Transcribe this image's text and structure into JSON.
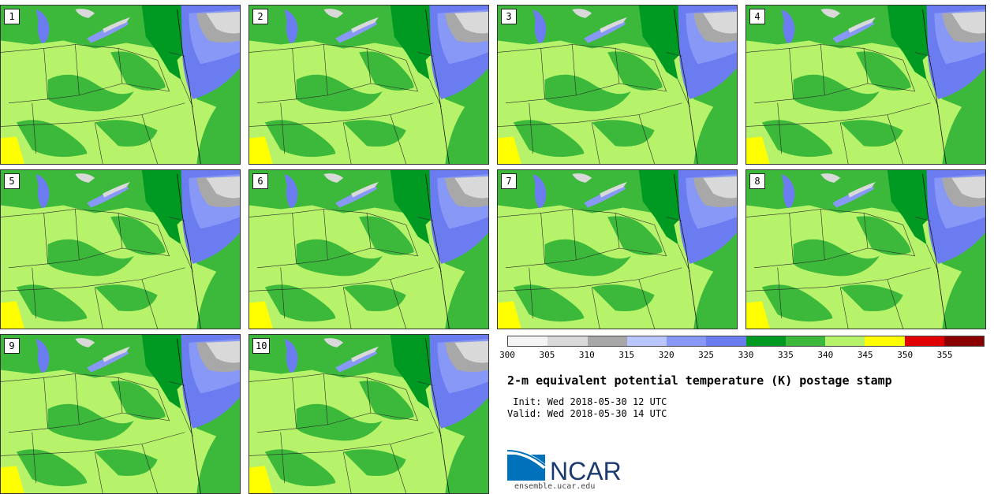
{
  "panels": [
    {
      "label": "1"
    },
    {
      "label": "2"
    },
    {
      "label": "3"
    },
    {
      "label": "4"
    },
    {
      "label": "5"
    },
    {
      "label": "6"
    },
    {
      "label": "7"
    },
    {
      "label": "8"
    },
    {
      "label": "9"
    },
    {
      "label": "10"
    }
  ],
  "colorbar": {
    "colors": [
      "#f4f4f4",
      "#d9d9d9",
      "#a8a8a8",
      "#b9c6ff",
      "#8898f7",
      "#6a7cf0",
      "#009a22",
      "#3cb93a",
      "#b6f36a",
      "#ffff00",
      "#e00000",
      "#8a0000"
    ],
    "ticks": [
      "300",
      "305",
      "310",
      "315",
      "320",
      "325",
      "330",
      "335",
      "340",
      "345",
      "350",
      "355"
    ]
  },
  "title": "2-m equivalent potential temperature (K) postage stamp",
  "init": " Init: Wed 2018-05-30 12 UTC",
  "valid": "Valid: Wed 2018-05-30 14 UTC",
  "logo": {
    "text": "NCAR",
    "url": "ensemble.ucar.edu"
  }
}
